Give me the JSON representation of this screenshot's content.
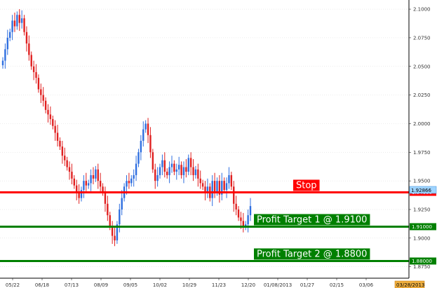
{
  "chart_data": {
    "type": "candlestick",
    "title": "",
    "xlabel": "",
    "ylabel": "",
    "ylim": [
      1.865,
      2.108
    ],
    "y_ticks": [
      "2.1000",
      "2.0750",
      "2.0500",
      "2.0250",
      "2.0000",
      "1.9750",
      "1.9500",
      "1.9250",
      "1.9000",
      "1.8750"
    ],
    "x_ticks": [
      "05/22",
      "06/18",
      "07/13",
      "08/09",
      "09/05",
      "10/02",
      "10/29",
      "11/23",
      "12/20",
      "01/08/2013",
      "01/27",
      "02/15",
      "03/06"
    ],
    "current_date_tag": "03/28/2013",
    "current_price_tag": "1.92866",
    "colors": {
      "up": "#2f6fe0",
      "down": "#e02020",
      "stop": "#ff0000",
      "target": "#008000"
    },
    "levels": [
      {
        "label": "Stop",
        "price": 1.94,
        "price_label": "1.94000",
        "color": "#ff0000"
      },
      {
        "label": "Profit Target 1 @ 1.9100",
        "price": 1.91,
        "price_label": "1.91000",
        "color": "#008000"
      },
      {
        "label": "Profit Target 2 @ 1.8800",
        "price": 1.88,
        "price_label": "1.88000",
        "color": "#008000"
      }
    ],
    "closes": [
      2.055,
      2.065,
      2.075,
      2.08,
      2.09,
      2.085,
      2.095,
      2.088,
      2.092,
      2.08,
      2.07,
      2.06,
      2.05,
      2.045,
      2.04,
      2.03,
      2.025,
      2.02,
      2.012,
      2.008,
      2.004,
      1.998,
      1.992,
      1.985,
      1.98,
      1.972,
      1.968,
      1.962,
      1.958,
      1.952,
      1.946,
      1.94,
      1.935,
      1.942,
      1.95,
      1.946,
      1.948,
      1.955,
      1.952,
      1.96,
      1.95,
      1.945,
      1.94,
      1.93,
      1.92,
      1.91,
      1.902,
      1.898,
      1.912,
      1.925,
      1.935,
      1.945,
      1.95,
      1.948,
      1.952,
      1.955,
      1.965,
      1.975,
      1.985,
      1.995,
      2.0,
      1.99,
      1.975,
      1.96,
      1.95,
      1.955,
      1.962,
      1.968,
      1.958,
      1.955,
      1.962,
      1.965,
      1.958,
      1.96,
      1.964,
      1.955,
      1.962,
      1.958,
      1.97,
      1.962,
      1.955,
      1.96,
      1.952,
      1.948,
      1.945,
      1.94,
      1.945,
      1.935,
      1.95,
      1.94,
      1.95,
      1.938,
      1.95,
      1.942,
      1.948,
      1.955,
      1.945,
      1.93,
      1.925,
      1.918,
      1.915,
      1.91,
      1.912,
      1.92,
      1.928
    ]
  }
}
